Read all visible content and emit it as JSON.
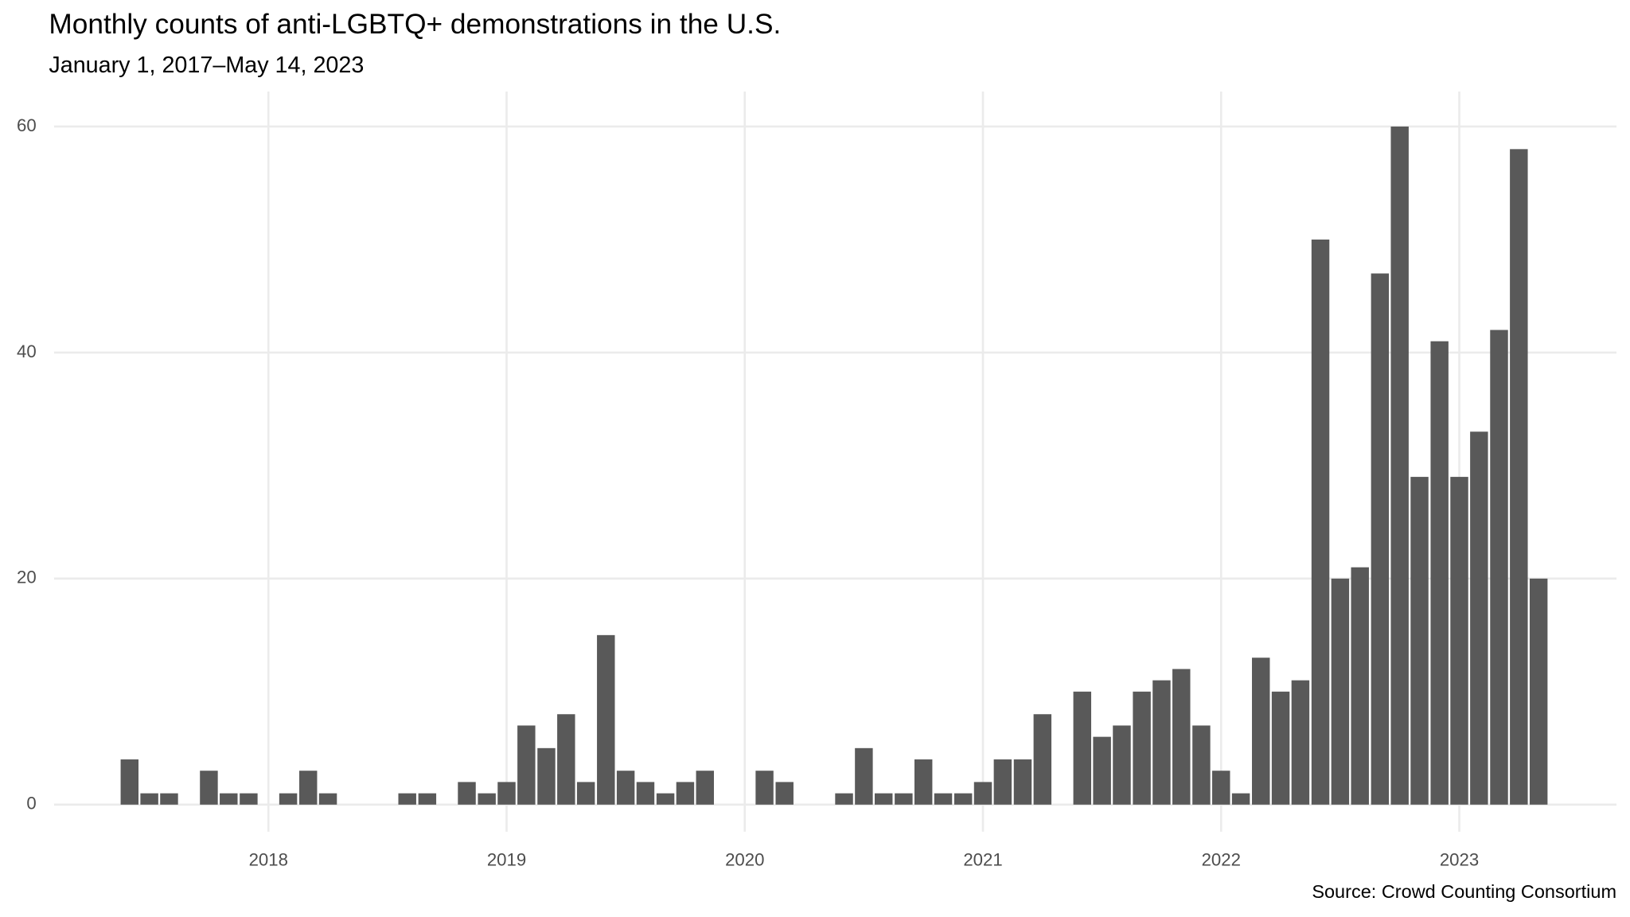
{
  "chart_data": {
    "type": "bar",
    "title": "Monthly counts of anti-LGBTQ+ demonstrations in the U.S.",
    "subtitle": "January 1, 2017–May 14, 2023",
    "caption": "Source: Crowd Counting Consortium",
    "x": [
      2017.417,
      2017.5,
      2017.583,
      2017.75,
      2017.833,
      2017.917,
      2018.083,
      2018.167,
      2018.25,
      2018.583,
      2018.667,
      2018.833,
      2018.917,
      2019.0,
      2019.083,
      2019.167,
      2019.25,
      2019.333,
      2019.417,
      2019.5,
      2019.583,
      2019.667,
      2019.75,
      2019.833,
      2020.083,
      2020.167,
      2020.417,
      2020.5,
      2020.583,
      2020.667,
      2020.75,
      2020.833,
      2020.917,
      2021.0,
      2021.083,
      2021.167,
      2021.25,
      2021.417,
      2021.5,
      2021.583,
      2021.667,
      2021.75,
      2021.833,
      2021.917,
      2022.0,
      2022.083,
      2022.167,
      2022.25,
      2022.333,
      2022.417,
      2022.5,
      2022.583,
      2022.667,
      2022.75,
      2022.833,
      2022.917,
      2023.0,
      2023.083,
      2023.167,
      2023.25,
      2023.333
    ],
    "values": [
      4,
      1,
      1,
      3,
      1,
      1,
      1,
      3,
      1,
      1,
      1,
      2,
      1,
      2,
      7,
      5,
      8,
      2,
      15,
      3,
      2,
      1,
      2,
      3,
      3,
      2,
      1,
      5,
      1,
      1,
      4,
      1,
      1,
      2,
      4,
      4,
      8,
      10,
      6,
      7,
      10,
      11,
      12,
      7,
      3,
      1,
      13,
      10,
      11,
      50,
      20,
      21,
      47,
      60,
      29,
      41,
      29,
      33,
      42,
      58,
      20
    ],
    "color": "#595959",
    "xlim": [
      2017.1,
      2023.66
    ],
    "xticks": [
      2018,
      2019,
      2020,
      2021,
      2022,
      2023
    ],
    "ylim": [
      -2.4,
      63.1
    ],
    "yticks": [
      0,
      20,
      40,
      60
    ],
    "grid": true
  }
}
